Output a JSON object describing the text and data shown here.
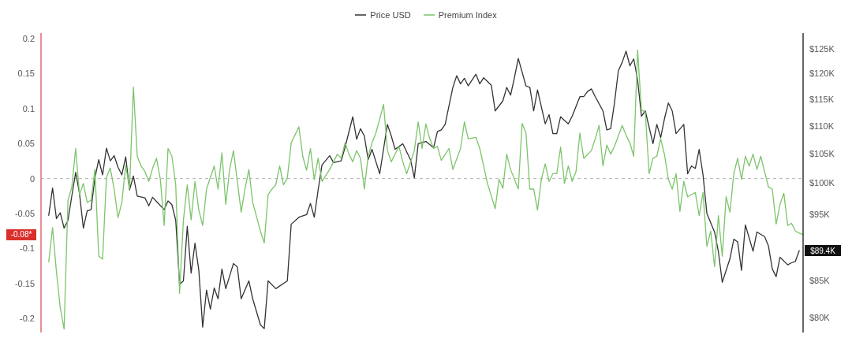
{
  "chart_data": {
    "type": "line",
    "legend": "top",
    "tick_labels": "y",
    "log": "y2",
    "categories": [
      null,
      null,
      null,
      null,
      null,
      null,
      null,
      null,
      null,
      null,
      null,
      null,
      null,
      null,
      null,
      null,
      null,
      null,
      null,
      null,
      null,
      null,
      null,
      null,
      null,
      null,
      null,
      null,
      null,
      null,
      null,
      null,
      null,
      null,
      null,
      null,
      null,
      null,
      null,
      null,
      null,
      null,
      null,
      null,
      null,
      null,
      null,
      null,
      null,
      null,
      null,
      null,
      null,
      null,
      null,
      null,
      null,
      null,
      null,
      null,
      null,
      null,
      null,
      null,
      null,
      null,
      null,
      null,
      null,
      null,
      null,
      null,
      null,
      null,
      null,
      null,
      null,
      null,
      null,
      null,
      null,
      null,
      null,
      null,
      null,
      null,
      null,
      null,
      null,
      null,
      null,
      null,
      null,
      null,
      null,
      null,
      null,
      null,
      null,
      null,
      null,
      null,
      null,
      null,
      null,
      null,
      null,
      null,
      null,
      null,
      null,
      null,
      null,
      null,
      null,
      null,
      null,
      null,
      null,
      null,
      null,
      null,
      null,
      null,
      null,
      null,
      null,
      null,
      null,
      null,
      null,
      null,
      null,
      null,
      null,
      null,
      null,
      null,
      null,
      null,
      null,
      null,
      null,
      null,
      null,
      null,
      null,
      null,
      null,
      null,
      null,
      null,
      null,
      null,
      null,
      null,
      null,
      null,
      null,
      null,
      null,
      null,
      null,
      null,
      null,
      null,
      null,
      null,
      null,
      null,
      null,
      null,
      null,
      null,
      null,
      null,
      null,
      null,
      null,
      null,
      null,
      null,
      null,
      null,
      null,
      null,
      null,
      null,
      null,
      null,
      null,
      null,
      null,
      null,
      null,
      null,
      null,
      null,
      null
    ],
    "ylim": [
      -0.22,
      0.208
    ],
    "yticks": [
      {
        "value": 0.2,
        "label": "0.2"
      },
      {
        "value": 0.15,
        "label": "0.15"
      },
      {
        "value": 0.1,
        "label": "0.1"
      },
      {
        "value": 0.05,
        "label": "0.05"
      },
      {
        "value": 0,
        "label": "0"
      },
      {
        "value": -0.05,
        "label": "-0.05"
      },
      {
        "value": -0.1,
        "label": "-0.1"
      },
      {
        "value": -0.15,
        "label": "-0.15"
      },
      {
        "value": -0.2,
        "label": "-0.2"
      }
    ],
    "y2lim": [
      78000,
      128400
    ],
    "y2ticks": [
      {
        "value": 80000,
        "label": "$80K"
      },
      {
        "value": 85000,
        "label": "$85K"
      },
      {
        "value": 95000,
        "label": "$95K"
      },
      {
        "value": 100000,
        "label": "$100K"
      },
      {
        "value": 105000,
        "label": "$105K"
      },
      {
        "value": 110000,
        "label": "$110K"
      },
      {
        "value": 115000,
        "label": "$115K"
      },
      {
        "value": 120000,
        "label": "$120K"
      },
      {
        "value": 125000,
        "label": "$125K"
      }
    ],
    "ref_lines": [
      {
        "axis": "y",
        "value": 0,
        "color": "#b0b0b0",
        "line_style": "dashed"
      }
    ],
    "annotations": [
      "$89.4K",
      "-0.08*"
    ],
    "series": [
      {
        "name": "Price USD",
        "color": "#333333",
        "axis": "y2",
        "values": [
          null,
          null,
          94800,
          99200,
          94300,
          95200,
          92800,
          94000,
          97900,
          101800,
          98300,
          92800,
          95500,
          95700,
          100900,
          104000,
          101400,
          106000,
          103800,
          104700,
          102700,
          101400,
          104500,
          98900,
          101200,
          97900,
          null,
          97600,
          96300,
          97700,
          97000,
          null,
          95700,
          97100,
          96500,
          94000,
          84500,
          85000,
          93100,
          86100,
          90500,
          86500,
          78700,
          83700,
          81100,
          84000,
          82500,
          86700,
          83900,
          null,
          87500,
          87000,
          82500,
          null,
          85000,
          82500,
          null,
          79000,
          78500,
          85000,
          null,
          83900,
          null,
          null,
          85000,
          93400,
          null,
          94500,
          null,
          94900,
          96700,
          94500,
          98900,
          103100,
          null,
          104700,
          103500,
          null,
          103800,
          106200,
          null,
          111700,
          107600,
          109500,
          108200,
          104000,
          105800,
          null,
          101600,
          null,
          110300,
          108200,
          105800,
          null,
          106800,
          null,
          104000,
          100900,
          106800,
          null,
          107200,
          null,
          106100,
          109000,
          109300,
          110300,
          null,
          117300,
          119600,
          118000,
          119100,
          117600,
          null,
          119900,
          118000,
          119200,
          null,
          117700,
          112800,
          null,
          114700,
          117300,
          115800,
          119200,
          123100,
          null,
          117600,
          117300,
          112800,
          116800,
          null,
          110400,
          112100,
          108600,
          108600,
          111700,
          null,
          110400,
          111800,
          null,
          115500,
          115500,
          116500,
          117000,
          115500,
          null,
          112800,
          109300,
          109500,
          114300,
          120600,
          122300,
          124600,
          121600,
          123000,
          118800,
          111800,
          112800,
          null,
          106800,
          110300,
          107900,
          111400,
          114300,
          112800,
          108600,
          null,
          110300,
          101600,
          102900,
          102500,
          105800,
          101400,
          95100,
          null,
          92200,
          89200,
          84800,
          null,
          88200,
          91100,
          90700,
          86500,
          93300,
          null,
          89300,
          92200,
          null,
          91500,
          90100,
          86700,
          85600,
          88400,
          null,
          87300,
          87600,
          87800,
          89400,
          null
        ]
      },
      {
        "name": "Premium Index",
        "color": "#7cc46a",
        "values": [
          null,
          null,
          -0.119,
          -0.07,
          -0.133,
          -0.185,
          -0.215,
          -0.031,
          -0.012,
          0.043,
          -0.023,
          -0.007,
          -0.034,
          -0.031,
          0.013,
          -0.111,
          -0.115,
          0.002,
          0.015,
          -0.015,
          -0.056,
          -0.034,
          0.019,
          -0.015,
          0.131,
          0.032,
          0.018,
          0.01,
          -0.004,
          0.015,
          0.029,
          -0.001,
          -0.067,
          0.043,
          0.032,
          -0.009,
          -0.164,
          -0.059,
          -0.009,
          -0.059,
          -0.004,
          -0.045,
          -0.067,
          -0.015,
          null,
          0.018,
          -0.015,
          0.037,
          -0.037,
          0.013,
          0.04,
          null,
          -0.048,
          -0.015,
          0.013,
          -0.034,
          null,
          -0.075,
          -0.092,
          -0.023,
          -0.015,
          -0.009,
          0.018,
          -0.009,
          0.001,
          0.051,
          null,
          0.074,
          0.032,
          0.012,
          0.043,
          -0.001,
          0.029,
          -0.004,
          null,
          0.013,
          null,
          0.035,
          0.029,
          0.051,
          0.035,
          0.024,
          0.04,
          0.029,
          -0.015,
          0.032,
          0.051,
          0.065,
          null,
          0.106,
          0.04,
          0.024,
          null,
          0.046,
          0.024,
          0.007,
          null,
          0.04,
          0.081,
          0.043,
          0.078,
          0.057,
          0.043,
          0.046,
          0.026,
          null,
          0.043,
          0.013,
          null,
          0.043,
          0.081,
          0.057,
          null,
          0.059,
          0.043,
          0.018,
          -0.007,
          null,
          -0.043,
          -0.001,
          -0.014,
          0.035,
          0.013,
          null,
          -0.015,
          0.079,
          0.065,
          -0.015,
          -0.015,
          -0.045,
          -0.001,
          0.021,
          -0.004,
          0.007,
          0.007,
          0.045,
          -0.007,
          0.018,
          -0.004,
          0.01,
          0.065,
          0.029,
          null,
          0.04,
          0.057,
          0.076,
          0.018,
          0.048,
          0.035,
          0.046,
          null,
          0.076,
          0.062,
          0.051,
          0.032,
          0.184,
          0.098,
          0.095,
          0.007,
          0.029,
          0.032,
          0.057,
          0.034,
          -0.001,
          -0.015,
          0.007,
          -0.047,
          -0.004,
          -0.026,
          null,
          -0.02,
          -0.053,
          -0.02,
          -0.097,
          -0.075,
          -0.126,
          -0.053,
          -0.111,
          -0.026,
          -0.048,
          0.007,
          0.029,
          -0.001,
          0.032,
          0.018,
          0.035,
          0.013,
          0.032,
          0.01,
          -0.012,
          -0.015,
          -0.065,
          -0.037,
          -0.021,
          -0.067,
          -0.064,
          -0.075,
          -0.078,
          -0.08
        ]
      }
    ]
  }
}
